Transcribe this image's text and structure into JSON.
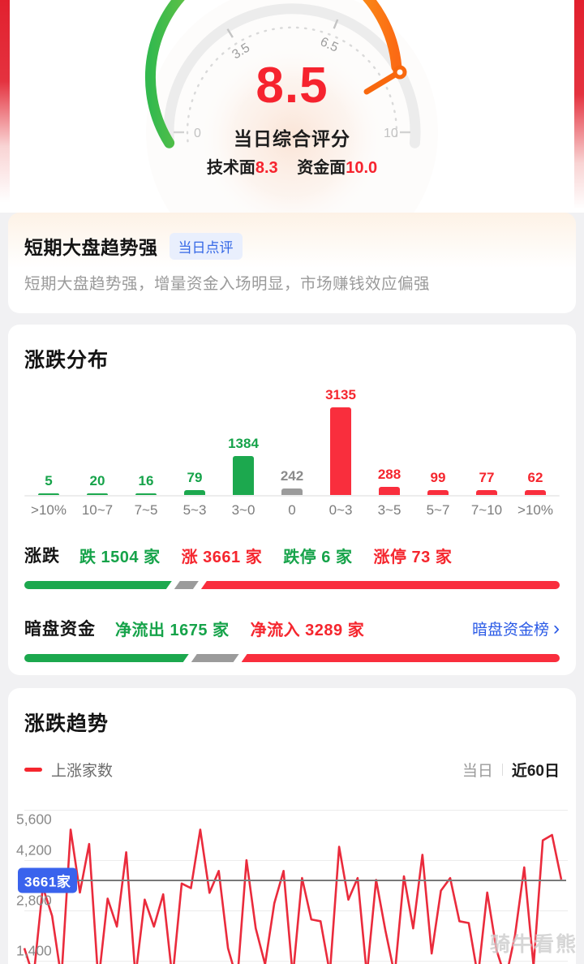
{
  "colors": {
    "red": "#f5262e",
    "red_bar": "#f92e3d",
    "green": "#16a34a",
    "green_bar": "#1ca84e",
    "gray_bar": "#9b9b9b",
    "blue_link": "#2a5ae6",
    "badge_blue": "#3a63ed",
    "tag_blue_text": "#3568e6",
    "tag_blue_bg": "#e9effd"
  },
  "gauge": {
    "score": "8.5",
    "score_label": "当日综合评分",
    "sub_metrics": [
      {
        "label": "技术面",
        "value": "8.3"
      },
      {
        "label": "资金面",
        "value": "10.0"
      }
    ],
    "ticks": {
      "min": "0",
      "max": "10",
      "mid_left": "3.5",
      "mid_right": "6.5"
    }
  },
  "comment_card": {
    "title": "短期大盘趋势强",
    "badge": "当日点评",
    "description": "短期大盘趋势强，增量资金入场明显，市场赚钱效应偏强"
  },
  "distribution_section": {
    "title": "涨跌分布"
  },
  "updown": {
    "label": "涨跌",
    "stats": [
      {
        "text": "跌 1504 家",
        "color": "green"
      },
      {
        "text": "涨 3661 家",
        "color": "red"
      },
      {
        "text": "跌停 6 家",
        "color": "green"
      },
      {
        "text": "涨停 73 家",
        "color": "red"
      }
    ],
    "bar_segments": [
      {
        "color": "green",
        "width_pct": 27.8
      },
      {
        "color": "gray",
        "width_pct": 4.6
      },
      {
        "color": "red",
        "width_pct": 67.6
      }
    ]
  },
  "dark_pool": {
    "label": "暗盘资金",
    "stats": [
      {
        "text": "净流出 1675 家",
        "color": "green"
      },
      {
        "text": "净流入 3289 家",
        "color": "red"
      }
    ],
    "link": "暗盘资金榜",
    "link_chevron": "›",
    "bar_segments": [
      {
        "color": "green",
        "width_pct": 31.0
      },
      {
        "color": "gray",
        "width_pct": 9.0
      },
      {
        "color": "red",
        "width_pct": 60.0
      }
    ]
  },
  "trend_section": {
    "title": "涨跌趋势",
    "legend": "上涨家数",
    "range_options": [
      {
        "label": "当日",
        "active": false
      },
      {
        "label": "近60日",
        "active": true
      }
    ]
  },
  "watermark": "骑牛看熊",
  "chart_data": [
    {
      "type": "bar",
      "title": "涨跌分布",
      "categories": [
        ">10%",
        "10~7",
        "7~5",
        "5~3",
        "3~0",
        "0",
        "0~3",
        "3~5",
        "5~7",
        "7~10",
        ">10%"
      ],
      "values": [
        5,
        20,
        16,
        79,
        1384,
        242,
        3135,
        288,
        99,
        77,
        62
      ],
      "bar_colors": [
        "green",
        "green",
        "green",
        "green",
        "green",
        "gray",
        "red",
        "red",
        "red",
        "red",
        "red"
      ],
      "value_labels_shown": true,
      "xlabel": "",
      "ylabel": ""
    },
    {
      "type": "line",
      "title": "涨跌趋势",
      "x_range_label": "近60日",
      "series": [
        {
          "name": "上涨家数",
          "color": "#ea2b3c",
          "values": [
            1750,
            950,
            3450,
            2650,
            900,
            5050,
            3300,
            4650,
            800,
            3130,
            2350,
            4420,
            950,
            3100,
            2350,
            3250,
            900,
            3550,
            3420,
            5050,
            3290,
            3900,
            1750,
            850,
            4200,
            2300,
            1300,
            3000,
            3900,
            950,
            3700,
            2550,
            2500,
            1050,
            4570,
            3100,
            3700,
            1000,
            3650,
            2250,
            1000,
            3750,
            2300,
            4350,
            1600,
            3350,
            3700,
            2500,
            2450,
            950,
            3300,
            1700,
            900,
            2100,
            4000,
            1250,
            4750,
            4900,
            3661
          ]
        }
      ],
      "yticks": [
        5600,
        4200,
        2800,
        1400
      ],
      "ytick_labels": [
        "5,600",
        "4,200",
        "2,800",
        "1,400"
      ],
      "ylim": [
        1050,
        5800
      ],
      "grid": true,
      "reference_line": {
        "value": 3661,
        "label": "3661家"
      }
    }
  ]
}
